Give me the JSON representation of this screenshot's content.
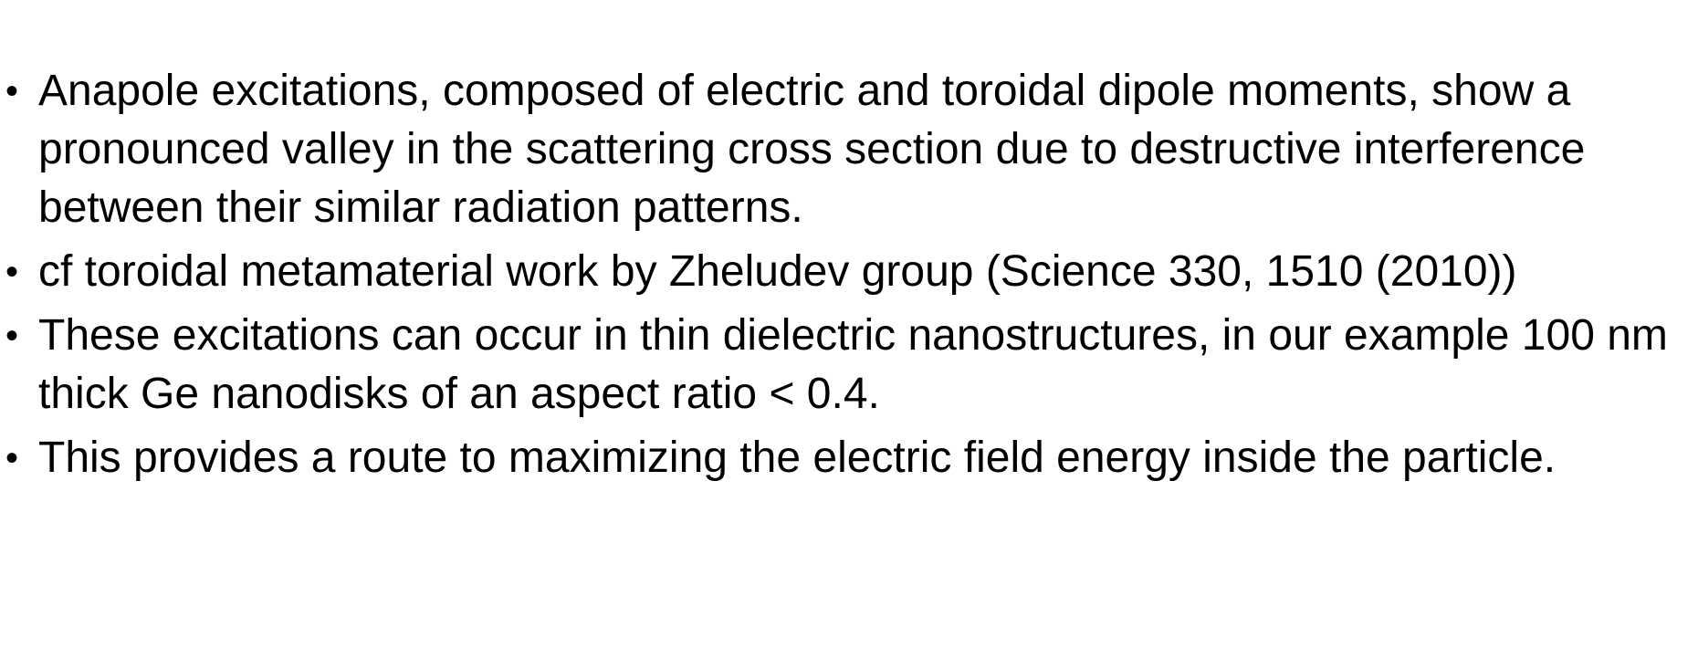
{
  "slide": {
    "bullets": [
      {
        "text": "Anapole excitations, composed of electric and toroidal dipole moments, show a pronounced valley in the scattering cross section due to destructive interference between their similar radiation patterns."
      },
      {
        "text": "cf toroidal metamaterial work by Zheludev group (Science 330, 1510 (2010))"
      },
      {
        "text": "These excitations can occur in thin dielectric nanostructures, in our example 100 nm thick Ge nanodisks of an aspect ratio < 0.4."
      },
      {
        "text": "This provides a route to maximizing the electric field energy inside the particle."
      }
    ],
    "bullet_glyph": "•"
  }
}
